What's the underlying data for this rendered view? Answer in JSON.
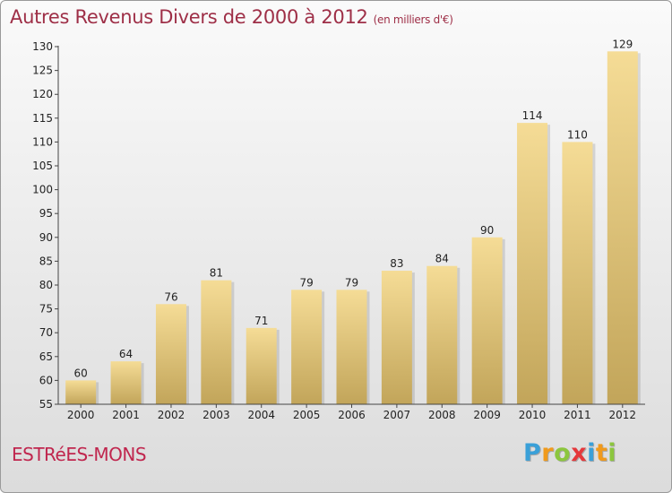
{
  "chart_data": {
    "type": "bar",
    "title": "Autres Revenus Divers de 2000 à 2012",
    "unit_label": "(en milliers d'€)",
    "categories": [
      "2000",
      "2001",
      "2002",
      "2003",
      "2004",
      "2005",
      "2006",
      "2007",
      "2008",
      "2009",
      "2010",
      "2011",
      "2012"
    ],
    "values": [
      60,
      64,
      76,
      81,
      71,
      79,
      79,
      83,
      84,
      90,
      114,
      110,
      129
    ],
    "ylim": [
      55,
      130
    ],
    "yticks": [
      55,
      60,
      65,
      70,
      75,
      80,
      85,
      90,
      95,
      100,
      105,
      110,
      115,
      120,
      125,
      130
    ],
    "grid": false,
    "colors": {
      "bar_light": "#f5dc96",
      "bar_dark": "#c2a55a",
      "title": "#9e2f47"
    }
  },
  "footer": {
    "commune": "ESTRéES-MONS",
    "logo_letters": [
      "P",
      "r",
      "o",
      "x",
      "i",
      "t",
      "i"
    ],
    "logo_colors": [
      "#3aa0d8",
      "#f09a1c",
      "#8cc63e",
      "#e5383b",
      "#3aa0d8",
      "#f09a1c",
      "#8cc63e"
    ]
  }
}
